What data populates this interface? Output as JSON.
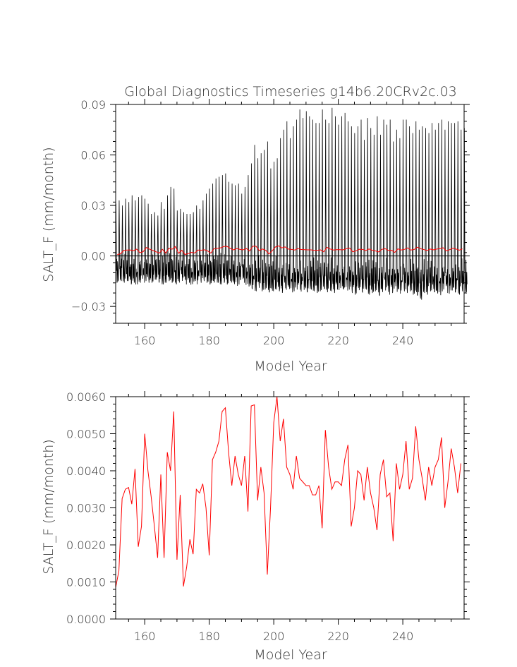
{
  "chart_data": [
    {
      "type": "line",
      "title": "Global Diagnostics Timeseries g14b6.20CRv2c.03",
      "xlabel": "Model Year",
      "ylabel": "SALT_F (mm/month)",
      "xlim": [
        151,
        259
      ],
      "ylim": [
        -0.04,
        0.09
      ],
      "xticks": [
        160,
        180,
        200,
        220,
        240
      ],
      "xtick_labels": [
        "160",
        "180",
        "200",
        "220",
        "240"
      ],
      "yticks": [
        -0.03,
        0.0,
        0.03,
        0.06,
        0.09
      ],
      "ytick_labels": [
        "−0.03",
        "0.00",
        "0.03",
        "0.06",
        "0.09"
      ],
      "zero_line": true,
      "series": [
        {
          "kind": "monthly",
          "color": "#000000",
          "annual_max": [
            0.031,
            0.033,
            0.03,
            0.034,
            0.032,
            0.036,
            0.033,
            0.035,
            0.036,
            0.034,
            0.031,
            0.025,
            0.026,
            0.024,
            0.032,
            0.028,
            0.036,
            0.041,
            0.04,
            0.027,
            0.028,
            0.026,
            0.025,
            0.025,
            0.026,
            0.03,
            0.028,
            0.033,
            0.037,
            0.04,
            0.043,
            0.046,
            0.047,
            0.048,
            0.049,
            0.044,
            0.043,
            0.042,
            0.043,
            0.037,
            0.041,
            0.048,
            0.055,
            0.066,
            0.058,
            0.061,
            0.063,
            0.068,
            0.052,
            0.056,
            0.058,
            0.07,
            0.075,
            0.08,
            0.07,
            0.077,
            0.081,
            0.087,
            0.082,
            0.086,
            0.083,
            0.081,
            0.079,
            0.079,
            0.087,
            0.081,
            0.079,
            0.088,
            0.083,
            0.078,
            0.083,
            0.085,
            0.08,
            0.077,
            0.073,
            0.077,
            0.081,
            0.069,
            0.082,
            0.076,
            0.072,
            0.083,
            0.072,
            0.081,
            0.078,
            0.081,
            0.068,
            0.075,
            0.07,
            0.081,
            0.081,
            0.077,
            0.073,
            0.08,
            0.075,
            0.077,
            0.076,
            0.073,
            0.079,
            0.075,
            0.079,
            0.081,
            0.075,
            0.08,
            0.079,
            0.079,
            0.08,
            0.075,
            0.076
          ],
          "annual_min": [
            -0.016,
            -0.015,
            -0.016,
            -0.015,
            -0.017,
            -0.016,
            -0.018,
            -0.017,
            -0.016,
            -0.015,
            -0.016,
            -0.016,
            -0.015,
            -0.016,
            -0.017,
            -0.016,
            -0.015,
            -0.016,
            -0.017,
            -0.016,
            -0.015,
            -0.017,
            -0.016,
            -0.018,
            -0.016,
            -0.017,
            -0.016,
            -0.015,
            -0.016,
            -0.017,
            -0.016,
            -0.016,
            -0.017,
            -0.016,
            -0.017,
            -0.016,
            -0.017,
            -0.018,
            -0.017,
            -0.016,
            -0.018,
            -0.019,
            -0.02,
            -0.021,
            -0.019,
            -0.021,
            -0.02,
            -0.022,
            -0.021,
            -0.02,
            -0.021,
            -0.022,
            -0.021,
            -0.02,
            -0.022,
            -0.021,
            -0.02,
            -0.022,
            -0.021,
            -0.022,
            -0.02,
            -0.021,
            -0.022,
            -0.021,
            -0.02,
            -0.022,
            -0.021,
            -0.022,
            -0.02,
            -0.021,
            -0.022,
            -0.021,
            -0.02,
            -0.022,
            -0.023,
            -0.021,
            -0.022,
            -0.02,
            -0.023,
            -0.022,
            -0.021,
            -0.024,
            -0.022,
            -0.021,
            -0.023,
            -0.022,
            -0.02,
            -0.022,
            -0.023,
            -0.021,
            -0.022,
            -0.021,
            -0.023,
            -0.024,
            -0.026,
            -0.022,
            -0.023,
            -0.021,
            -0.022,
            -0.023,
            -0.024,
            -0.021,
            -0.022,
            -0.023,
            -0.021,
            -0.022,
            -0.023,
            -0.021,
            -0.022
          ]
        },
        {
          "kind": "annual_mean",
          "color": "#ff0000"
        }
      ]
    },
    {
      "type": "line",
      "xlabel": "Model Year",
      "ylabel": "SALT_F (mm/month)",
      "xlim": [
        151,
        259
      ],
      "ylim": [
        0.0,
        0.006
      ],
      "xticks": [
        160,
        180,
        200,
        220,
        240
      ],
      "xtick_labels": [
        "160",
        "180",
        "200",
        "220",
        "240"
      ],
      "yticks": [
        0.0,
        0.001,
        0.002,
        0.003,
        0.004,
        0.005,
        0.006
      ],
      "ytick_labels": [
        "0.0000",
        "0.0010",
        "0.0020",
        "0.0030",
        "0.0040",
        "0.0050",
        "0.0060"
      ],
      "series": [
        {
          "kind": "annual_mean",
          "color": "#ff0000",
          "x": [
            151,
            152,
            153,
            154,
            155,
            156,
            157,
            158,
            159,
            160,
            161,
            162,
            163,
            164,
            165,
            166,
            167,
            168,
            169,
            170,
            171,
            172,
            173,
            174,
            175,
            176,
            177,
            178,
            179,
            180,
            181,
            182,
            183,
            184,
            185,
            186,
            187,
            188,
            189,
            190,
            191,
            192,
            193,
            194,
            195,
            196,
            197,
            198,
            199,
            200,
            201,
            202,
            203,
            204,
            205,
            206,
            207,
            208,
            209,
            210,
            211,
            212,
            213,
            214,
            215,
            216,
            217,
            218,
            219,
            220,
            221,
            222,
            223,
            224,
            225,
            226,
            227,
            228,
            229,
            230,
            231,
            232,
            233,
            234,
            235,
            236,
            237,
            238,
            239,
            240,
            241,
            242,
            243,
            244,
            245,
            246,
            247,
            248,
            249,
            250,
            251,
            252,
            253,
            254,
            255,
            256,
            257,
            258
          ],
          "values": [
            0.00085,
            0.0013,
            0.00325,
            0.0035,
            0.00355,
            0.0031,
            0.00405,
            0.00195,
            0.0025,
            0.005,
            0.004,
            0.0033,
            0.0025,
            0.00165,
            0.0039,
            0.00165,
            0.0045,
            0.004,
            0.0056,
            0.0016,
            0.00335,
            0.00088,
            0.0014,
            0.00215,
            0.00175,
            0.0035,
            0.0034,
            0.00365,
            0.003,
            0.00172,
            0.0043,
            0.0045,
            0.0048,
            0.0056,
            0.0057,
            0.0045,
            0.0036,
            0.0044,
            0.0039,
            0.0036,
            0.0044,
            0.0029,
            0.00575,
            0.00578,
            0.0032,
            0.0041,
            0.0034,
            0.0012,
            0.003,
            0.0053,
            0.006,
            0.0048,
            0.0054,
            0.0041,
            0.0039,
            0.0035,
            0.0044,
            0.0038,
            0.0037,
            0.0036,
            0.0036,
            0.00335,
            0.00335,
            0.0036,
            0.00245,
            0.0051,
            0.0041,
            0.0035,
            0.0037,
            0.0037,
            0.0036,
            0.0043,
            0.0047,
            0.0025,
            0.003,
            0.004,
            0.0039,
            0.0032,
            0.0041,
            0.0034,
            0.003,
            0.0024,
            0.0039,
            0.0043,
            0.0033,
            0.0034,
            0.0021,
            0.0042,
            0.0035,
            0.0039,
            0.0048,
            0.0035,
            0.0038,
            0.0052,
            0.0043,
            0.0038,
            0.0032,
            0.0041,
            0.0036,
            0.0041,
            0.0043,
            0.0049,
            0.003,
            0.0037,
            0.0046,
            0.0041,
            0.0034,
            0.0042
          ]
        }
      ]
    }
  ]
}
